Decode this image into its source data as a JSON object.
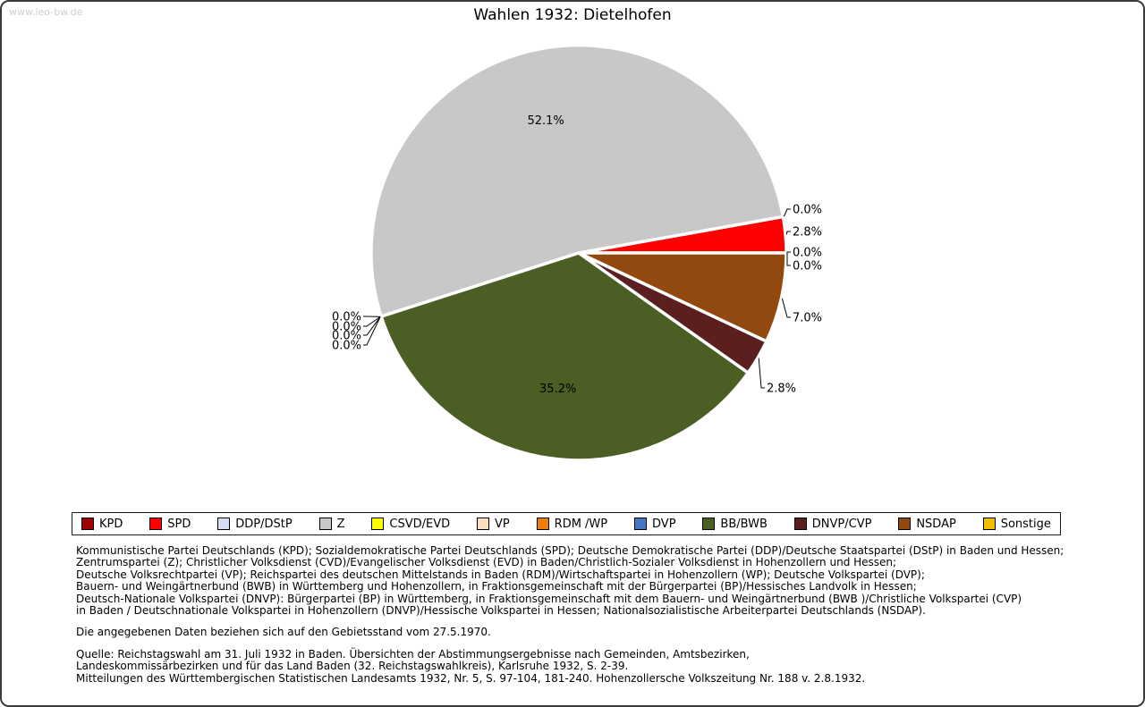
{
  "page": {
    "watermark": "www.leo-bw.de",
    "title": "Wahlen 1932: Dietelhofen"
  },
  "chart_data": {
    "type": "pie",
    "title": "Wahlen 1932: Dietelhofen",
    "unit": "%",
    "direction": "counterclockwise",
    "start_angle_deg": 0,
    "series": [
      {
        "label": "KPD",
        "value": 0.0,
        "color": "#a00000"
      },
      {
        "label": "SPD",
        "value": 2.8,
        "color": "#ff0000"
      },
      {
        "label": "DDP/DStP",
        "value": 0.0,
        "color": "#d8def2"
      },
      {
        "label": "Z",
        "value": 52.1,
        "color": "#c8c8c8"
      },
      {
        "label": "CSVD/EVD",
        "value": 0.0,
        "color": "#ffff00"
      },
      {
        "label": "VP",
        "value": 0.0,
        "color": "#fbdfbd"
      },
      {
        "label": "RDM /WP",
        "value": 0.0,
        "color": "#ee7d0c"
      },
      {
        "label": "DVP",
        "value": 0.0,
        "color": "#4575c4"
      },
      {
        "label": "BB/BWB",
        "value": 35.2,
        "color": "#4b5e23"
      },
      {
        "label": "DNVP/CVP",
        "value": 2.8,
        "color": "#5b1f1f"
      },
      {
        "label": "NSDAP",
        "value": 7.0,
        "color": "#92490f"
      },
      {
        "label": "Sonstige",
        "value": 0.0,
        "color": "#efc000"
      }
    ]
  },
  "notes": {
    "party_explanations": [
      "Kommunistische Partei Deutschlands (KPD); Sozialdemokratische Partei Deutschlands (SPD); Deutsche Demokratische Partei (DDP)/Deutsche Staatspartei (DStP) in Baden und Hessen;",
      "Zentrumspartei (Z); Christlicher Volksdienst (CVD)/Evangelischer Volksdienst (EVD) in Baden/Christlich-Sozialer Volksdienst in Hohenzollern und Hessen;",
      "Deutsche Volksrechtpartei (VP); Reichspartei des deutschen Mittelstands in Baden (RDM)/Wirtschaftspartei in Hohenzollern (WP); Deutsche Volkspartei (DVP);",
      "Bauern- und Weingärtnerbund (BWB) in Württemberg und Hohenzollern, in Fraktionsgemeinschaft mit der Bürgerpartei (BP)/Hessisches Landvolk in Hessen;",
      "Deutsch-Nationale Volkspartei (DNVP): Bürgerpartei (BP) in Württemberg, in Fraktionsgemeinschaft mit dem Bauern- und Weingärtnerbund (BWB )/Christliche Volkspartei (CVP)",
      "in Baden / Deutschnationale Volkspartei in Hohenzollern (DNVP)/Hessische Volkspartei in Hessen; Nationalsozialistische Arbeiterpartei Deutschlands (NSDAP)."
    ],
    "territorial_note": "Die angegebenen Daten beziehen sich auf den Gebietsstand vom 27.5.1970.",
    "source_lines": [
      "Quelle: Reichstagswahl am 31. Juli 1932 in Baden. Übersichten der Abstimmungsergebnisse nach Gemeinden, Amtsbezirken,",
      "Landeskommissärbezirken und für das Land Baden (32. Reichstagswahlkreis), Karlsruhe 1932, S. 2-39.",
      "Mitteilungen des Württembergischen Statistischen Landesamts 1932, Nr. 5, S. 97-104, 181-240. Hohenzollersche Volkszeitung Nr. 188 v. 2.8.1932."
    ]
  }
}
